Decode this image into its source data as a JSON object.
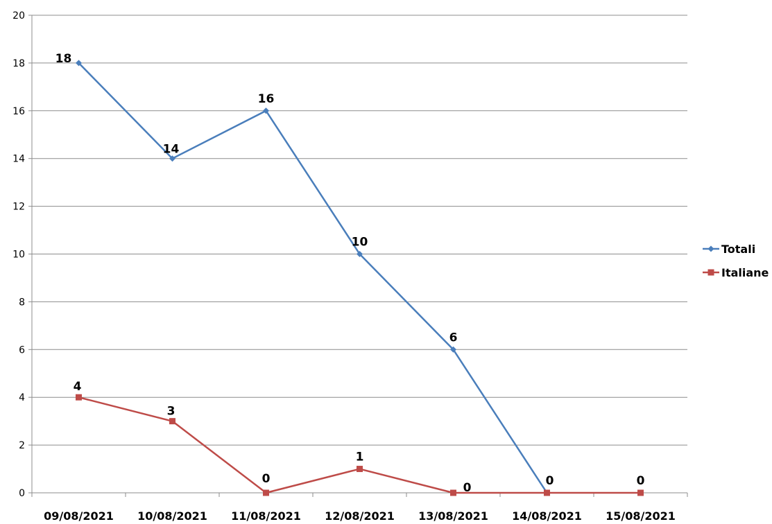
{
  "chart_data": {
    "type": "line",
    "title": "",
    "xlabel": "",
    "ylabel": "",
    "categories": [
      "09/08/2021",
      "10/08/2021",
      "11/08/2021",
      "12/08/2021",
      "13/08/2021",
      "14/08/2021",
      "15/08/2021"
    ],
    "ylim": [
      0,
      20
    ],
    "yticks": [
      "0",
      "2",
      "4",
      "6",
      "8",
      "10",
      "12",
      "14",
      "16",
      "18",
      "20"
    ],
    "grid": true,
    "legend_position": "right",
    "series": [
      {
        "name": "Totali",
        "values": [
          18,
          14,
          16,
          10,
          6,
          0,
          null
        ],
        "color": "#4a7ebb",
        "marker": "diamond"
      },
      {
        "name": "Italiane",
        "values": [
          4,
          3,
          0,
          1,
          0,
          0,
          0
        ],
        "color": "#be4b48",
        "marker": "square"
      }
    ]
  }
}
